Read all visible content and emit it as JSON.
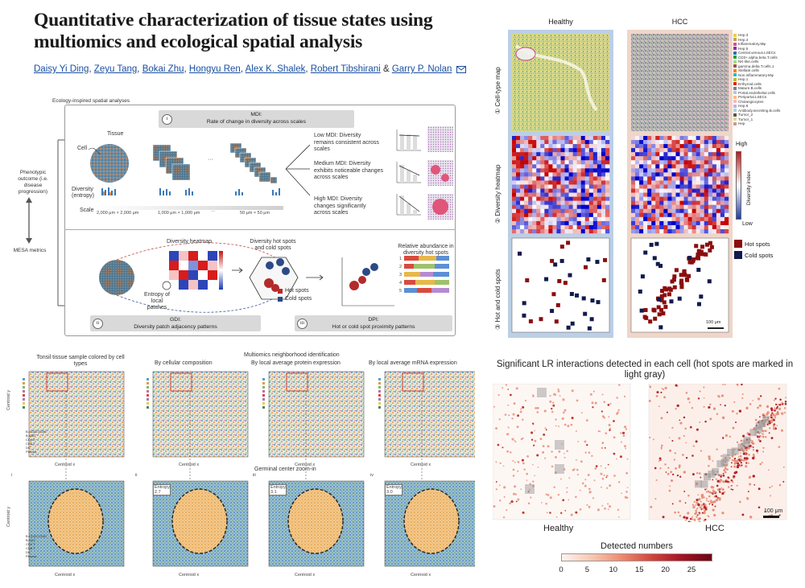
{
  "header": {
    "title": "Quantitative characterization of tissue states using multiomics and ecological spatial analysis",
    "authors": [
      "Daisy Yi Ding",
      "Zeyu Tang",
      "Bokai Zhu",
      "Hongyu Ren",
      "Alex K. Shalek",
      "Robert Tibshirani",
      "Garry P. Nolan"
    ],
    "authors_connector": "&",
    "sep": ","
  },
  "framework": {
    "eco_label": "Ecology-inspired spatial analyses",
    "left_top": "Phenotypic outcome (i.e. disease progression)",
    "left_bottom": "MESA metrics",
    "mdi_roman": "i",
    "mdi_title": "MDI:",
    "mdi_sub": "Rate of change in diversity across scales",
    "tissue": "Tissue",
    "cell": "Cell",
    "diversity": "Diversity (entropy)",
    "scale": "Scale",
    "scale_ticks": [
      "2,000 μm × 2,000 μm",
      "1,000 μm × 1,000 μm",
      "50 μm × 50 μm"
    ],
    "dots": "···",
    "low_mdi": "Low MDI: Diversity remains consistent across scales",
    "med_mdi": "Medium MDI: Diversity exhibits noticeable changes across scales",
    "high_mdi": "High MDI: Diversity changes significantly across scales",
    "div_heatmap": "Diversity heatmap",
    "entropy_patches": "Entropy of local patches",
    "hot_cold_title": "Diversity hot spots and cold spots",
    "hot": "Hot spots",
    "cold": "Cold spots",
    "rel_abund": "Relative abundance in diversity hot spots",
    "rel_rows": [
      "1",
      "2",
      "3",
      "4",
      "5"
    ],
    "gdi_roman": "ii",
    "gdi_title": "GDI:",
    "gdi_sub": "Diversity patch adjacency patterns",
    "dpi_roman": "iii",
    "dpi_title": "DPI:",
    "dpi_sub": "Hot or cold spot proximity patterns"
  },
  "tonsil": {
    "main_title": "Multiomics neighborhood identification",
    "col_titles": [
      "Tonsil tissue sample colored by cell types",
      "By cellular composition",
      "By local average protein expression",
      "By local average mRNA expression"
    ],
    "zoom_title": "Germinal center zoom-in",
    "roman": [
      "i",
      "ii",
      "iii",
      "iv"
    ],
    "entropy_labels": [
      "Entropy: 2.7",
      "Entropy: 3.1",
      "Entropy: 3.0"
    ],
    "axis_x": "Centroid x",
    "axis_y": "Centroid y",
    "cell_types": [
      "B-CD22-CD40",
      "B-Ki67",
      "CD4 T",
      "CD8 T",
      "DC",
      "Plasma"
    ]
  },
  "right_top": {
    "col_titles": [
      "Healthy",
      "HCC"
    ],
    "row_labels": [
      "① Cell-type map",
      "② Diversity heatmap",
      "③ Hot and cold spots"
    ],
    "cell_types": [
      "Hep.3",
      "Hep.4",
      "Inflammatory.Mφ",
      "Hep.5",
      "Central.venous.LSECs",
      "CD3+.alpha.beta.T.cells",
      "NK-like.cells",
      "gamma.delta.T.cells.1",
      "Stellate.cells",
      "Non.inflammatory.Mφ",
      "Hep.1",
      "Erthyroid.cells",
      "Mature.B.cells",
      "Portal.endothelial.cells",
      "Periportal.LSECs",
      "Cholangiocytes",
      "Hep.6",
      "Antibody.secreting.B.cells",
      "Tumor_2",
      "Tumor_1",
      "Hep"
    ],
    "cell_colors": [
      "#e8d23a",
      "#c4a35a",
      "#e04b8a",
      "#9c27b0",
      "#1f77b4",
      "#2ca02c",
      "#98df8a",
      "#8c564b",
      "#ff7f0e",
      "#17becf",
      "#bcbd22",
      "#d62728",
      "#7f7f7f",
      "#aec7e8",
      "#ffbb78",
      "#f7b6d2",
      "#c5b0d5",
      "#9edae5",
      "#555555",
      "#dbdb8d",
      "#c49c94"
    ],
    "div_high": "High",
    "div_low": "Low",
    "div_axis": "Diversity index",
    "hot": "Hot spots",
    "cold": "Cold spots",
    "scalebar": "100 μm",
    "colors": {
      "hot": "#8b0d0d",
      "cold": "#101a4d",
      "healthy_bg": "#bccfe6",
      "hcc_bg": "#efd6c8"
    }
  },
  "lr": {
    "title": "Significant LR interactions detected in each cell (hot spots are marked in light gray)",
    "labels": [
      "Healthy",
      "HCC"
    ],
    "cbar_title": "Detected numbers",
    "cbar_ticks": [
      "0",
      "5",
      "10",
      "15",
      "20",
      "25"
    ],
    "cbar_values": [
      0,
      5,
      10,
      15,
      20,
      25
    ],
    "cbar_max": 29,
    "scalebar": "100 μm"
  }
}
